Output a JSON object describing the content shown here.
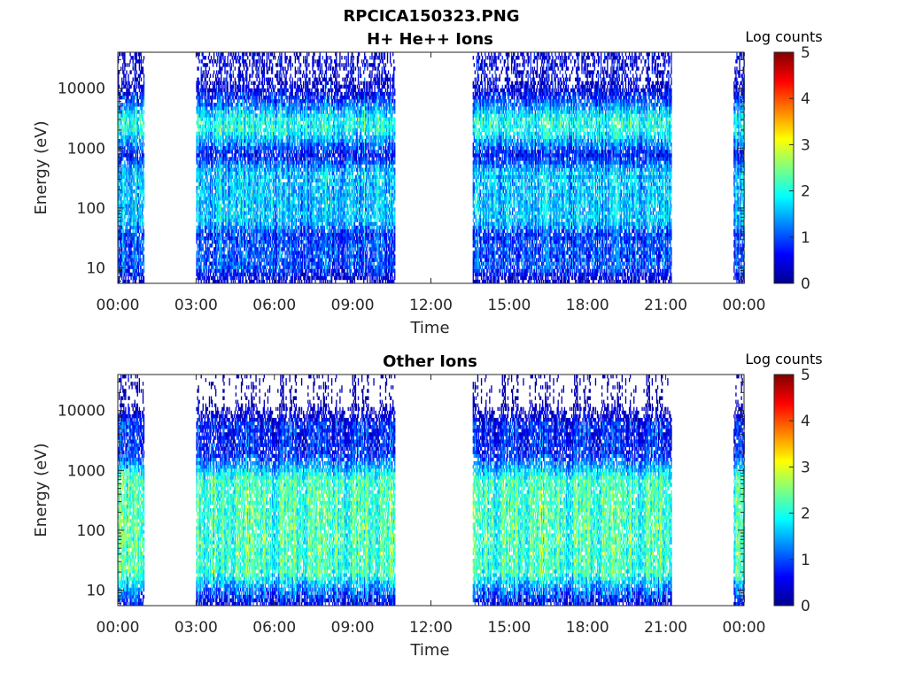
{
  "figure": {
    "title": "RPCICA150323.PNG"
  },
  "chart_data": [
    {
      "type": "heatmap",
      "title": "H+ He++ Ions",
      "xlabel": "Time",
      "ylabel": "Energy (eV)",
      "x_ticks": [
        "00:00",
        "03:00",
        "06:00",
        "09:00",
        "12:00",
        "15:00",
        "18:00",
        "21:00",
        "00:00"
      ],
      "x_tick_hours": [
        0,
        3,
        6,
        9,
        12,
        15,
        18,
        21,
        24
      ],
      "xlim_hours": [
        0,
        24
      ],
      "y_scale": "log",
      "ylim": [
        5.5,
        40000
      ],
      "y_ticks": [
        10,
        100,
        1000,
        10000
      ],
      "y_tick_labels": [
        "10",
        "100",
        "1000",
        "10000"
      ],
      "colorbar": {
        "label": "Log counts",
        "range": [
          0,
          5
        ],
        "ticks": [
          "0",
          "1",
          "2",
          "3",
          "4",
          "5"
        ],
        "colormap": "jet"
      },
      "data_intervals_hours": [
        [
          0.0,
          1.0
        ],
        [
          3.0,
          10.6
        ],
        [
          13.6,
          21.2
        ],
        [
          23.6,
          24.0
        ]
      ],
      "bands": [
        {
          "energy_range_eV": [
            2000,
            3000
          ],
          "log_counts": 2.0,
          "note": ""
        },
        {
          "energy_range_eV": [
            60,
            400
          ],
          "log_counts": 1.6,
          "note": ""
        },
        {
          "energy_range_eV": [
            10,
            30
          ],
          "log_counts": 1.0,
          "note": ""
        }
      ]
    },
    {
      "type": "heatmap",
      "title": "Other Ions",
      "xlabel": "Time",
      "ylabel": "Energy (eV)",
      "x_ticks": [
        "00:00",
        "03:00",
        "06:00",
        "09:00",
        "12:00",
        "15:00",
        "18:00",
        "21:00",
        "00:00"
      ],
      "x_tick_hours": [
        0,
        3,
        6,
        9,
        12,
        15,
        18,
        21,
        24
      ],
      "xlim_hours": [
        0,
        24
      ],
      "y_scale": "log",
      "ylim": [
        5.5,
        40000
      ],
      "y_ticks": [
        10,
        100,
        1000,
        10000
      ],
      "y_tick_labels": [
        "10",
        "100",
        "1000",
        "10000"
      ],
      "colorbar": {
        "label": "Log counts",
        "range": [
          0,
          5
        ],
        "ticks": [
          "0",
          "1",
          "2",
          "3",
          "4",
          "5"
        ],
        "colormap": "jet"
      },
      "data_intervals_hours": [
        [
          0.0,
          1.0
        ],
        [
          3.0,
          10.6
        ],
        [
          13.6,
          21.2
        ],
        [
          23.6,
          24.0
        ]
      ],
      "bands": [
        {
          "energy_range_eV": [
            2000,
            6000
          ],
          "log_counts": 0.8
        },
        {
          "energy_range_eV": [
            20,
            700
          ],
          "log_counts": 2.2
        },
        {
          "energy_range_eV": [
            6,
            15
          ],
          "log_counts": 0.6
        }
      ]
    }
  ],
  "colors": {
    "axis": "#262626",
    "background": "#ffffff"
  }
}
